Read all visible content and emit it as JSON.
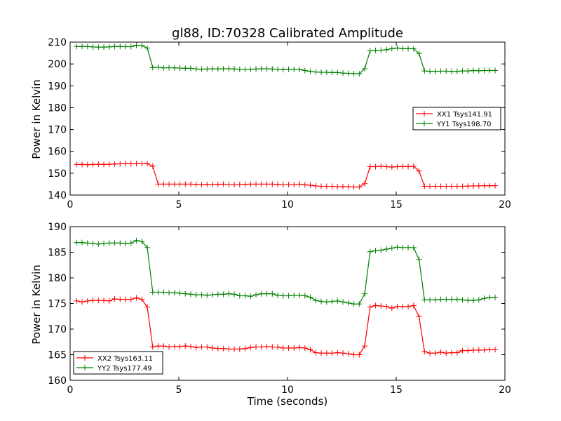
{
  "chart_data": [
    {
      "type": "line",
      "title": "gl88, ID:70328 Calibrated Amplitude",
      "xlabel": "",
      "ylabel": "Power in Kelvin",
      "xlim": [
        0,
        20
      ],
      "ylim": [
        140,
        210
      ],
      "xticks": [
        0,
        5,
        10,
        15,
        20
      ],
      "yticks": [
        140,
        150,
        160,
        170,
        180,
        190,
        200,
        210
      ],
      "grid": false,
      "legend_position": "right",
      "x": [
        0.3,
        0.55,
        0.8,
        1.05,
        1.3,
        1.55,
        1.8,
        2.05,
        2.3,
        2.55,
        2.8,
        3.05,
        3.3,
        3.55,
        3.8,
        4.05,
        4.3,
        4.55,
        4.8,
        5.05,
        5.3,
        5.55,
        5.8,
        6.05,
        6.3,
        6.55,
        6.8,
        7.05,
        7.3,
        7.55,
        7.8,
        8.05,
        8.3,
        8.55,
        8.8,
        9.05,
        9.3,
        9.55,
        9.8,
        10.05,
        10.3,
        10.55,
        10.8,
        11.05,
        11.3,
        11.55,
        11.8,
        12.05,
        12.3,
        12.55,
        12.8,
        13.05,
        13.3,
        13.55,
        13.8,
        14.05,
        14.3,
        14.55,
        14.8,
        15.05,
        15.3,
        15.55,
        15.8,
        16.05,
        16.3,
        16.55,
        16.8,
        17.05,
        17.3,
        17.55,
        17.8,
        18.05,
        18.3,
        18.55,
        18.8,
        19.05,
        19.3,
        19.55
      ],
      "series": [
        {
          "name": "XX1 Tsys141.91",
          "color": "#ff0000",
          "values": [
            154.0,
            154.0,
            153.9,
            154.0,
            154.1,
            154.0,
            154.1,
            154.2,
            154.3,
            154.5,
            154.3,
            154.4,
            154.3,
            154.4,
            153.2,
            145.0,
            145.0,
            145.0,
            145.0,
            145.0,
            145.0,
            145.0,
            144.9,
            144.8,
            144.9,
            144.8,
            144.9,
            145.0,
            144.8,
            144.8,
            144.8,
            144.9,
            145.0,
            145.0,
            145.0,
            145.0,
            145.0,
            144.9,
            144.8,
            144.8,
            144.8,
            145.0,
            144.7,
            144.5,
            144.2,
            144.0,
            144.0,
            144.0,
            143.8,
            143.9,
            143.8,
            143.7,
            143.7,
            145.2,
            153.0,
            153.0,
            153.2,
            153.0,
            152.8,
            153.0,
            153.1,
            153.0,
            153.2,
            151.0,
            144.0,
            144.0,
            144.0,
            144.0,
            144.0,
            144.0,
            144.0,
            144.0,
            144.1,
            144.2,
            144.2,
            144.3,
            144.3,
            144.3
          ]
        },
        {
          "name": "YY1 Tsys198.70",
          "color": "#008000",
          "values": [
            208.0,
            208.0,
            208.0,
            207.8,
            207.7,
            207.7,
            207.8,
            208.0,
            208.0,
            207.9,
            207.9,
            208.5,
            208.4,
            207.3,
            198.3,
            198.5,
            198.2,
            198.3,
            198.2,
            198.1,
            198.0,
            198.0,
            197.7,
            197.6,
            197.7,
            197.8,
            197.7,
            197.8,
            197.8,
            197.7,
            197.5,
            197.5,
            197.5,
            197.7,
            197.8,
            197.8,
            197.7,
            197.5,
            197.4,
            197.6,
            197.5,
            197.5,
            197.0,
            196.6,
            196.3,
            196.2,
            196.2,
            196.1,
            196.1,
            195.8,
            195.7,
            195.6,
            195.5,
            197.8,
            206.0,
            206.2,
            206.3,
            206.5,
            207.0,
            207.3,
            207.0,
            207.0,
            207.0,
            204.8,
            196.8,
            196.6,
            196.6,
            196.7,
            196.7,
            196.6,
            196.6,
            196.8,
            196.8,
            197.0,
            196.9,
            197.0,
            197.0,
            197.0
          ]
        }
      ]
    },
    {
      "type": "line",
      "title": "",
      "xlabel": "Time (seconds)",
      "ylabel": "Power in Kelvin",
      "xlim": [
        0,
        20
      ],
      "ylim": [
        160,
        190
      ],
      "xticks": [
        0,
        5,
        10,
        15,
        20
      ],
      "yticks": [
        160,
        165,
        170,
        175,
        180,
        185,
        190
      ],
      "grid": false,
      "legend_position": "lower-left",
      "x": [
        0.3,
        0.55,
        0.8,
        1.05,
        1.3,
        1.55,
        1.8,
        2.05,
        2.3,
        2.55,
        2.8,
        3.05,
        3.3,
        3.55,
        3.8,
        4.05,
        4.3,
        4.55,
        4.8,
        5.05,
        5.3,
        5.55,
        5.8,
        6.05,
        6.3,
        6.55,
        6.8,
        7.05,
        7.3,
        7.55,
        7.8,
        8.05,
        8.3,
        8.55,
        8.8,
        9.05,
        9.3,
        9.55,
        9.8,
        10.05,
        10.3,
        10.55,
        10.8,
        11.05,
        11.3,
        11.55,
        11.8,
        12.05,
        12.3,
        12.55,
        12.8,
        13.05,
        13.3,
        13.55,
        13.8,
        14.05,
        14.3,
        14.55,
        14.8,
        15.05,
        15.3,
        15.55,
        15.8,
        16.05,
        16.3,
        16.55,
        16.8,
        17.05,
        17.3,
        17.55,
        17.8,
        18.05,
        18.3,
        18.55,
        18.8,
        19.05,
        19.3,
        19.55
      ],
      "series": [
        {
          "name": "XX2 Tsys163.11",
          "color": "#ff0000",
          "values": [
            175.5,
            175.3,
            175.5,
            175.6,
            175.6,
            175.6,
            175.5,
            175.9,
            175.8,
            175.8,
            175.8,
            176.1,
            175.8,
            174.3,
            166.5,
            166.7,
            166.7,
            166.5,
            166.6,
            166.6,
            166.7,
            166.6,
            166.4,
            166.5,
            166.5,
            166.3,
            166.2,
            166.2,
            166.1,
            166.1,
            166.1,
            166.2,
            166.4,
            166.5,
            166.5,
            166.6,
            166.5,
            166.5,
            166.3,
            166.3,
            166.3,
            166.4,
            166.3,
            166.0,
            165.4,
            165.3,
            165.3,
            165.3,
            165.4,
            165.3,
            165.2,
            165.0,
            165.0,
            166.7,
            174.3,
            174.6,
            174.5,
            174.4,
            174.1,
            174.4,
            174.4,
            174.4,
            174.6,
            172.4,
            165.6,
            165.3,
            165.3,
            165.5,
            165.3,
            165.4,
            165.4,
            165.8,
            165.8,
            165.9,
            165.9,
            165.9,
            166.0,
            166.0
          ]
        },
        {
          "name": "YY2 Tsys177.49",
          "color": "#008000",
          "values": [
            186.9,
            186.9,
            186.8,
            186.7,
            186.6,
            186.7,
            186.8,
            186.8,
            186.8,
            186.7,
            186.8,
            187.3,
            187.1,
            185.9,
            177.2,
            177.2,
            177.2,
            177.1,
            177.1,
            177.0,
            176.9,
            176.8,
            176.7,
            176.7,
            176.6,
            176.7,
            176.8,
            176.8,
            176.9,
            176.8,
            176.5,
            176.5,
            176.4,
            176.7,
            176.9,
            176.9,
            176.9,
            176.6,
            176.5,
            176.5,
            176.6,
            176.6,
            176.5,
            176.2,
            175.6,
            175.4,
            175.3,
            175.4,
            175.5,
            175.3,
            175.1,
            174.9,
            174.9,
            176.9,
            185.1,
            185.3,
            185.4,
            185.6,
            185.8,
            186.0,
            185.9,
            185.9,
            185.9,
            183.6,
            175.7,
            175.7,
            175.7,
            175.8,
            175.8,
            175.8,
            175.8,
            175.7,
            175.6,
            175.6,
            175.7,
            176.0,
            176.2,
            176.2
          ]
        }
      ]
    }
  ]
}
